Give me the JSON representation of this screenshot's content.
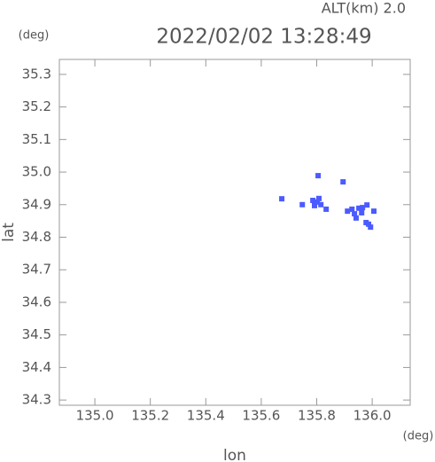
{
  "chart_data": {
    "type": "scatter",
    "title": "2022/02/02 13:28:49",
    "subtitle": "ALT(km) 2.0",
    "x_label": "lon",
    "y_label": "lat",
    "x_unit": "(deg)",
    "y_unit": "(deg)",
    "xlim": [
      134.872,
      136.137
    ],
    "ylim": [
      34.284,
      35.346
    ],
    "xticks": [
      {
        "value": 135.0,
        "label": "135.0"
      },
      135.2,
      135.4,
      135.6,
      135.8,
      {
        "value": 136.0,
        "label": "136.0"
      }
    ],
    "yticks": [
      34.3,
      34.4,
      34.5,
      34.6,
      34.7,
      34.8,
      34.9,
      {
        "value": 35.0,
        "label": "35.0"
      },
      35.1,
      35.2,
      35.3
    ],
    "series": [
      {
        "color": "#4b5bff",
        "x": [
          135.805,
          135.895,
          135.674,
          135.748,
          135.786,
          135.808,
          135.815,
          135.792,
          135.802,
          135.834,
          135.911,
          135.927,
          135.936,
          135.952,
          135.965,
          135.981,
          135.962,
          135.978,
          135.987,
          135.994,
          136.006,
          135.942
        ],
        "values": [
          34.989,
          34.97,
          34.918,
          34.9,
          34.913,
          34.919,
          34.9,
          34.897,
          34.908,
          34.886,
          34.88,
          34.886,
          34.872,
          34.889,
          34.891,
          34.899,
          34.875,
          34.845,
          34.84,
          34.831,
          34.88,
          34.859
        ]
      }
    ]
  }
}
